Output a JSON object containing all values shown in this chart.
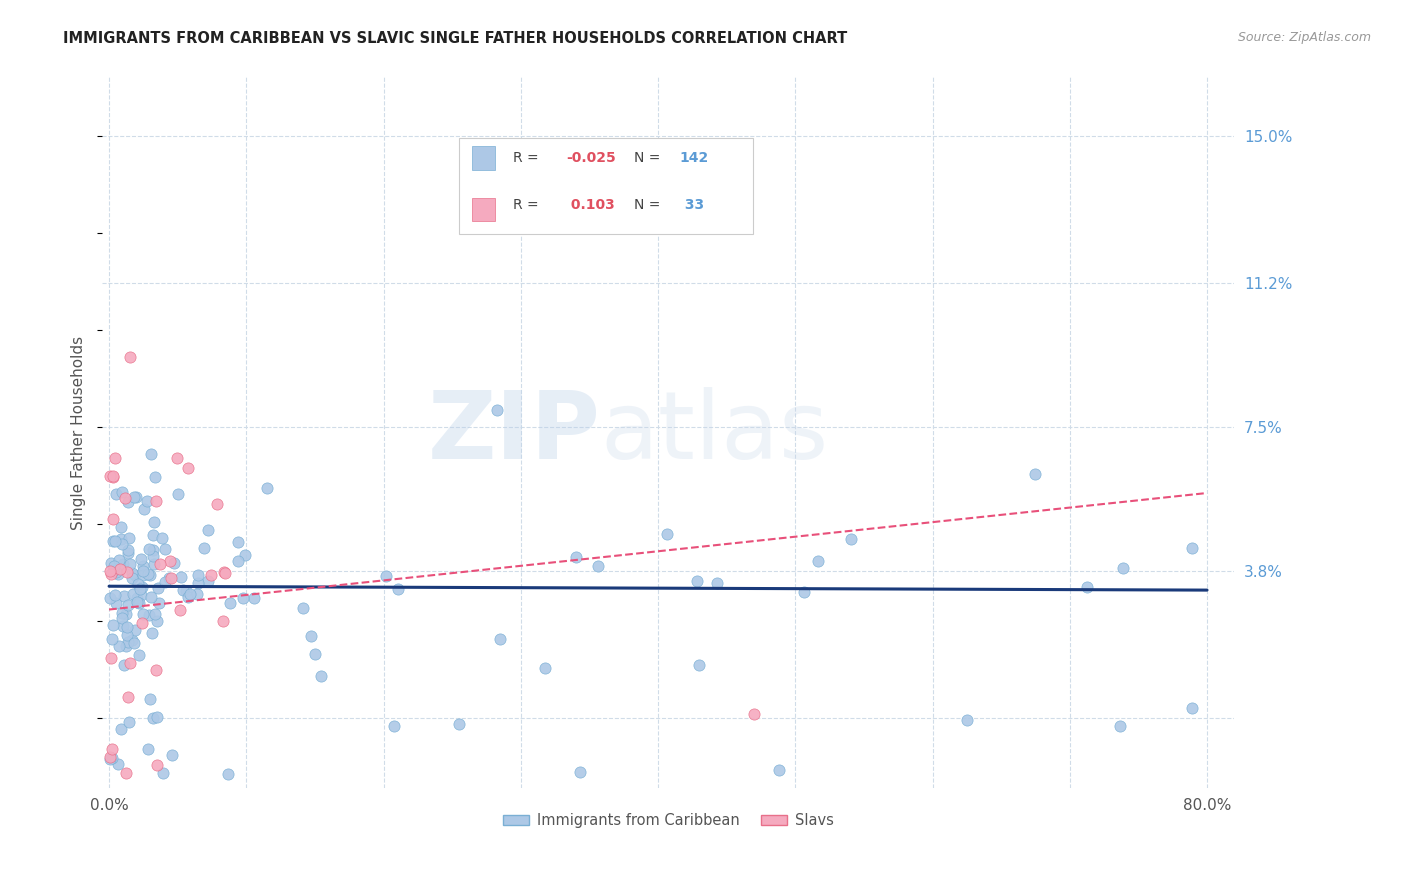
{
  "title": "IMMIGRANTS FROM CARIBBEAN VS SLAVIC SINGLE FATHER HOUSEHOLDS CORRELATION CHART",
  "source": "Source: ZipAtlas.com",
  "ylabel": "Single Father Households",
  "y_ticks": [
    0.0,
    0.038,
    0.075,
    0.112,
    0.15
  ],
  "y_tick_labels": [
    "",
    "3.8%",
    "7.5%",
    "11.2%",
    "15.0%"
  ],
  "xlim": [
    -0.005,
    0.82
  ],
  "ylim": [
    -0.018,
    0.165
  ],
  "caribbean_color": "#adc8e6",
  "caribbean_edge_color": "#7aafd4",
  "slavic_color": "#f5aabf",
  "slavic_edge_color": "#e8708a",
  "caribbean_line_color": "#1a3a7a",
  "slavic_line_color": "#e8507a",
  "grid_color": "#d0dce8",
  "background_color": "#ffffff",
  "watermark_zip": "ZIP",
  "watermark_atlas": "atlas",
  "legend_R_caribbean": "-0.025",
  "legend_N_caribbean": "142",
  "legend_R_slavic": "0.103",
  "legend_N_slavic": "33",
  "carib_line_x0": 0.0,
  "carib_line_x1": 0.8,
  "carib_line_y0": 0.034,
  "carib_line_y1": 0.033,
  "slav_line_x0": 0.0,
  "slav_line_x1": 0.8,
  "slav_line_y0": 0.028,
  "slav_line_y1": 0.058
}
